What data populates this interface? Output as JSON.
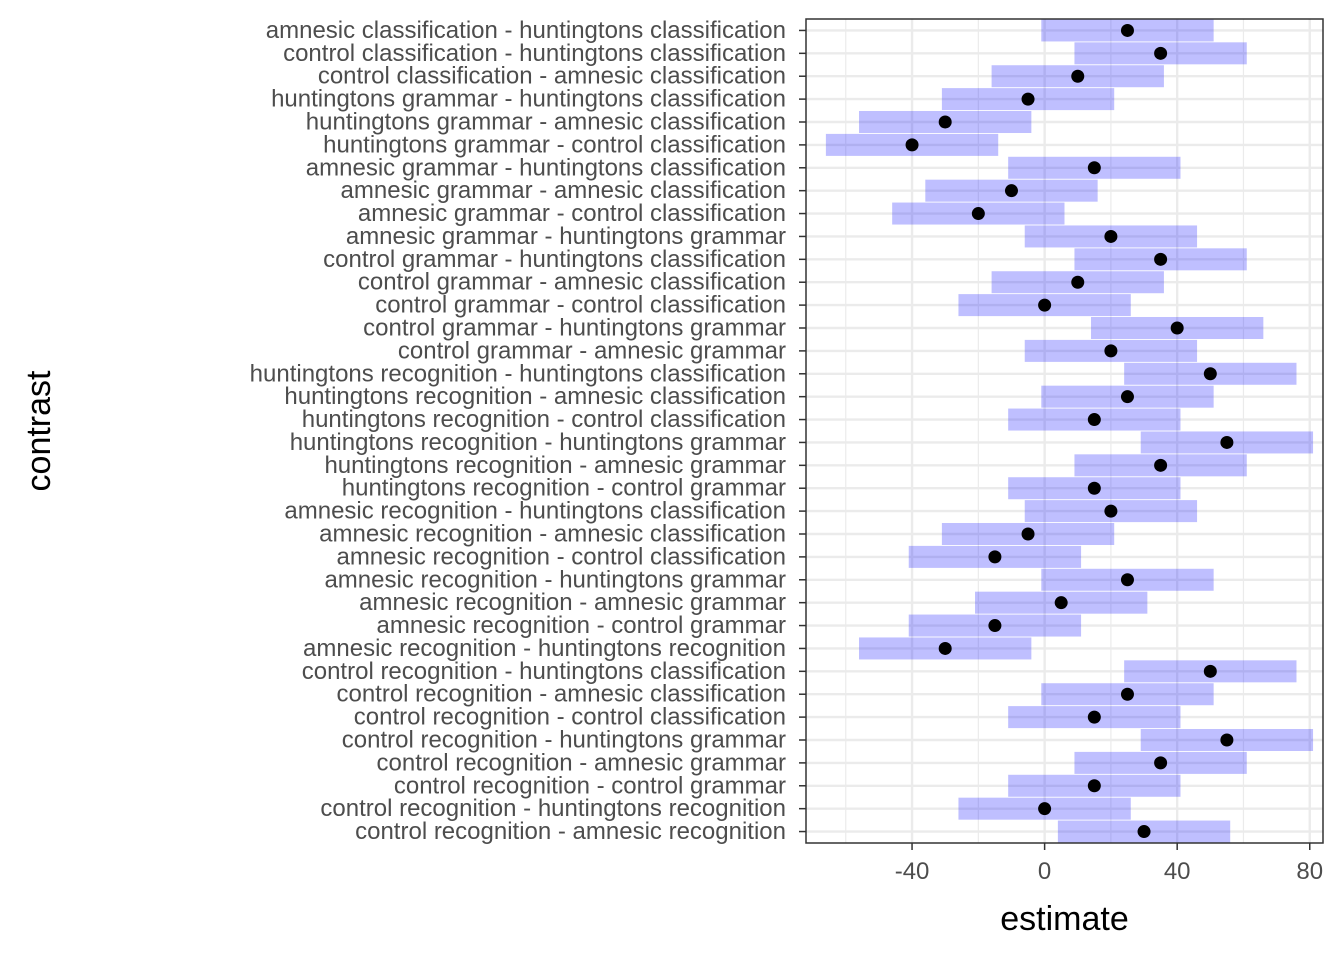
{
  "chart_data": {
    "type": "scatter",
    "xlabel": "estimate",
    "ylabel": "contrast",
    "xlim": [
      -72,
      84
    ],
    "x_ticks": [
      -40,
      0,
      40,
      80
    ],
    "x_tick_labels": [
      "-40",
      "0",
      "40",
      "80"
    ],
    "grid": true,
    "interval_color": "#0000ff",
    "interval_opacity": 0.25,
    "point_color": "#000000",
    "categories": [
      "amnesic classification - huntingtons classification",
      "control classification - huntingtons classification",
      "control classification - amnesic classification",
      "huntingtons grammar - huntingtons classification",
      "huntingtons grammar - amnesic classification",
      "huntingtons grammar - control classification",
      "amnesic grammar - huntingtons classification",
      "amnesic grammar - amnesic classification",
      "amnesic grammar - control classification",
      "amnesic grammar - huntingtons grammar",
      "control grammar - huntingtons classification",
      "control grammar - amnesic classification",
      "control grammar - control classification",
      "control grammar - huntingtons grammar",
      "control grammar - amnesic grammar",
      "huntingtons recognition - huntingtons classification",
      "huntingtons recognition - amnesic classification",
      "huntingtons recognition - control classification",
      "huntingtons recognition - huntingtons grammar",
      "huntingtons recognition - amnesic grammar",
      "huntingtons recognition - control grammar",
      "amnesic recognition - huntingtons classification",
      "amnesic recognition - amnesic classification",
      "amnesic recognition - control classification",
      "amnesic recognition - huntingtons grammar",
      "amnesic recognition - amnesic grammar",
      "amnesic recognition - control grammar",
      "amnesic recognition - huntingtons recognition",
      "control recognition - huntingtons classification",
      "control recognition - amnesic classification",
      "control recognition - control classification",
      "control recognition - huntingtons grammar",
      "control recognition - amnesic grammar",
      "control recognition - control grammar",
      "control recognition - huntingtons recognition",
      "control recognition - amnesic recognition"
    ],
    "estimates": [
      25,
      35,
      10,
      -5,
      -30,
      -40,
      15,
      -10,
      -20,
      20,
      35,
      10,
      0,
      40,
      20,
      50,
      25,
      15,
      55,
      35,
      15,
      20,
      -5,
      -15,
      25,
      5,
      -15,
      -30,
      50,
      25,
      15,
      55,
      35,
      15,
      0,
      30
    ],
    "lower": [
      -1,
      9,
      -16,
      -31,
      -56,
      -66,
      -11,
      -36,
      -46,
      -6,
      9,
      -16,
      -26,
      14,
      -6,
      24,
      -1,
      -11,
      29,
      9,
      -11,
      -6,
      -31,
      -41,
      -1,
      -21,
      -41,
      -56,
      24,
      -1,
      -11,
      29,
      9,
      -11,
      -26,
      4
    ],
    "upper": [
      51,
      61,
      36,
      21,
      -4,
      -14,
      41,
      16,
      6,
      46,
      61,
      36,
      26,
      66,
      46,
      76,
      51,
      41,
      81,
      61,
      41,
      46,
      21,
      11,
      51,
      31,
      11,
      -4,
      76,
      51,
      41,
      81,
      61,
      41,
      26,
      56
    ]
  }
}
